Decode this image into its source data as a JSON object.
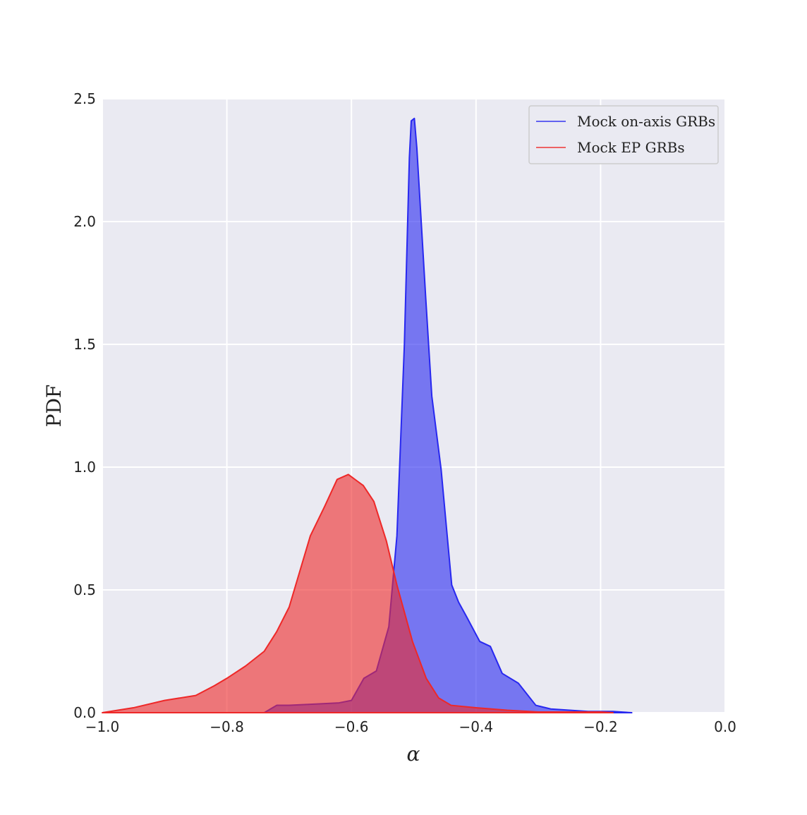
{
  "chart_data": {
    "type": "area",
    "xlabel": "α",
    "ylabel": "PDF",
    "xlim": [
      -1,
      0
    ],
    "ylim": [
      0,
      2.5
    ],
    "xticks": [
      {
        "value": -1,
        "label": "−1.0"
      },
      {
        "value": -0.8,
        "label": "−0.8"
      },
      {
        "value": -0.6,
        "label": "−0.6"
      },
      {
        "value": -0.4,
        "label": "−0.4"
      },
      {
        "value": -0.2,
        "label": "−0.2"
      },
      {
        "value": 0,
        "label": "0.0"
      }
    ],
    "yticks": [
      {
        "value": 0,
        "label": "0.0"
      },
      0.5,
      {
        "value": 1,
        "label": "1.0"
      },
      1.5,
      {
        "value": 2,
        "label": "2.0"
      },
      2.5
    ],
    "grid": true,
    "legend": "upper right",
    "series": [
      {
        "name": "Mock on-axis GRBs",
        "color": "#2828f0",
        "x": [
          -0.74,
          -0.72,
          -0.7,
          -0.66,
          -0.62,
          -0.6,
          -0.58,
          -0.56,
          -0.54,
          -0.527,
          -0.515,
          -0.507,
          -0.504,
          -0.499,
          -0.495,
          -0.481,
          -0.471,
          -0.456,
          -0.439,
          -0.428,
          -0.415,
          -0.394,
          -0.377,
          -0.358,
          -0.332,
          -0.304,
          -0.28,
          -0.22,
          -0.18,
          -0.15
        ],
        "values": [
          0,
          0.03,
          0.03,
          0.035,
          0.04,
          0.05,
          0.14,
          0.17,
          0.35,
          0.72,
          1.5,
          2.26,
          2.41,
          2.42,
          2.3,
          1.7,
          1.29,
          0.99,
          0.52,
          0.45,
          0.39,
          0.29,
          0.27,
          0.16,
          0.12,
          0.03,
          0.015,
          0.005,
          0.005,
          0
        ]
      },
      {
        "name": "Mock EP GRBs",
        "color": "#ee2828",
        "x": [
          -1,
          -0.95,
          -0.9,
          -0.85,
          -0.82,
          -0.8,
          -0.77,
          -0.74,
          -0.72,
          -0.7,
          -0.666,
          -0.643,
          -0.623,
          -0.605,
          -0.581,
          -0.564,
          -0.544,
          -0.527,
          -0.502,
          -0.48,
          -0.46,
          -0.44,
          -0.4,
          -0.35,
          -0.3,
          -0.22,
          -0.2,
          -0.18
        ],
        "values": [
          0,
          0.02,
          0.05,
          0.07,
          0.11,
          0.14,
          0.19,
          0.25,
          0.33,
          0.43,
          0.72,
          0.84,
          0.95,
          0.97,
          0.925,
          0.86,
          0.7,
          0.52,
          0.29,
          0.14,
          0.06,
          0.03,
          0.02,
          0.01,
          0.003,
          0.003,
          0.003,
          0
        ]
      }
    ]
  }
}
